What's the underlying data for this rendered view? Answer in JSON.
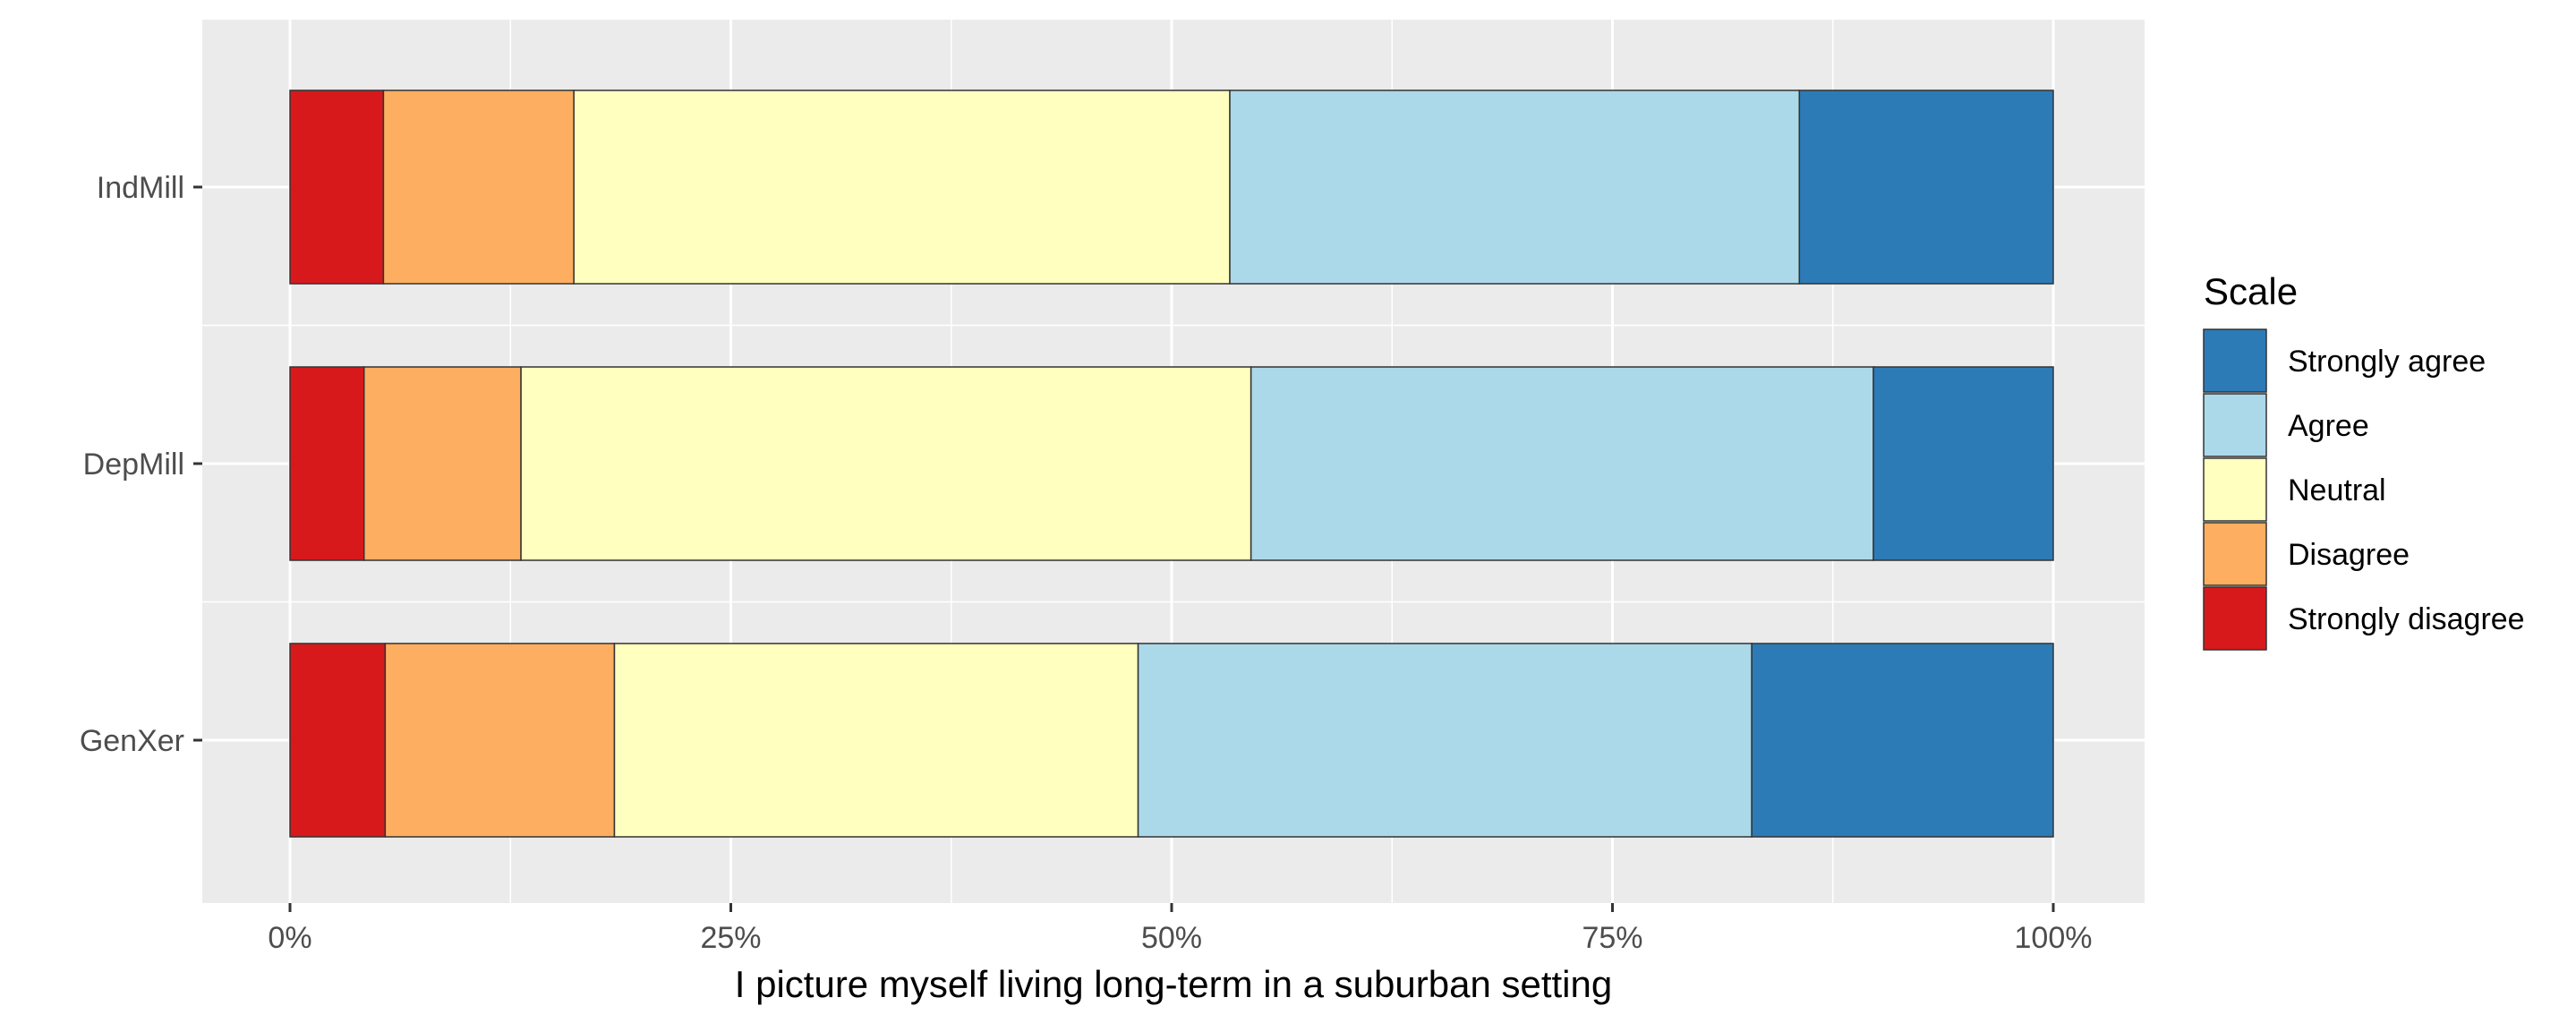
{
  "chart_data": {
    "type": "bar",
    "orientation": "horizontal",
    "stacked": "percent",
    "title": "",
    "xlabel": "I picture myself living long-term in a suburban setting",
    "ylabel": "",
    "categories": [
      "IndMill",
      "DepMill",
      "GenXer"
    ],
    "xlim": [
      0,
      1
    ],
    "x_ticks": [
      0,
      0.25,
      0.5,
      0.75,
      1.0
    ],
    "x_tick_labels": [
      "0%",
      "25%",
      "50%",
      "75%",
      "100%"
    ],
    "grid": true,
    "legend": {
      "title": "Scale",
      "position": "right",
      "order": [
        "Strongly agree",
        "Agree",
        "Neutral",
        "Disagree",
        "Strongly disagree"
      ]
    },
    "series": [
      {
        "name": "Strongly disagree",
        "color": "#D7191C",
        "values": [
          0.053,
          0.042,
          0.054
        ]
      },
      {
        "name": "Disagree",
        "color": "#FDAE61",
        "values": [
          0.108,
          0.089,
          0.13
        ]
      },
      {
        "name": "Neutral",
        "color": "#FFFFBF",
        "values": [
          0.372,
          0.414,
          0.297
        ]
      },
      {
        "name": "Agree",
        "color": "#ABD9E9",
        "values": [
          0.323,
          0.353,
          0.348
        ]
      },
      {
        "name": "Strongly agree",
        "color": "#2C7BB6",
        "values": [
          0.144,
          0.102,
          0.171
        ]
      }
    ]
  }
}
